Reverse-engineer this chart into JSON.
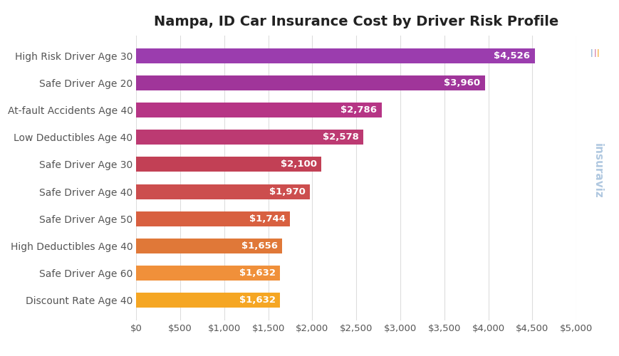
{
  "title": "Nampa, ID Car Insurance Cost by Driver Risk Profile",
  "categories": [
    "Discount Rate Age 40",
    "Safe Driver Age 60",
    "High Deductibles Age 40",
    "Safe Driver Age 50",
    "Safe Driver Age 40",
    "Safe Driver Age 30",
    "Low Deductibles Age 40",
    "At-fault Accidents Age 40",
    "Safe Driver Age 20",
    "High Risk Driver Age 30"
  ],
  "values": [
    1632,
    1632,
    1656,
    1744,
    1970,
    2100,
    2578,
    2786,
    3960,
    4526
  ],
  "bar_colors": [
    "#F5A623",
    "#F0903A",
    "#E07838",
    "#D86040",
    "#CC4E4E",
    "#C24055",
    "#BC3A72",
    "#B63585",
    "#A0359A",
    "#9B3DAE"
  ],
  "xlim": [
    0,
    5000
  ],
  "xticks": [
    0,
    500,
    1000,
    1500,
    2000,
    2500,
    3000,
    3500,
    4000,
    4500,
    5000
  ],
  "background_color": "#ffffff",
  "grid_color": "#dddddd",
  "title_fontsize": 14,
  "label_fontsize": 9.5,
  "tick_fontsize": 9.5,
  "ytick_fontsize": 10,
  "watermark_text": "insuraviz",
  "watermark_color": "#b0c8e0",
  "watermark_accent_orange": "#f5a623",
  "watermark_accent_pink": "#d070a0",
  "watermark_accent_blue": "#80a8d0"
}
